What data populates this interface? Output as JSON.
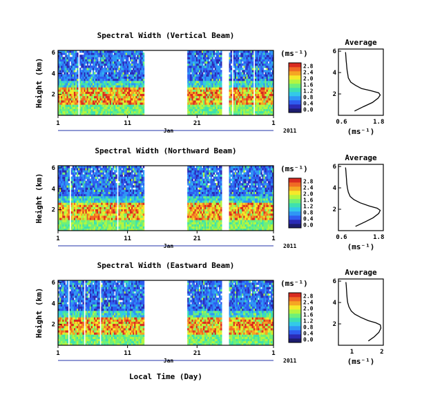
{
  "chart_data": {
    "type": "heatmap",
    "x_tick_labels": [
      "1",
      "11",
      "21",
      "1"
    ],
    "month_label": "Jan",
    "year_label": "2011",
    "xlabel": "Local Time (Day)",
    "ylabel": "Height (km)",
    "y_tick_labels": [
      "2",
      "4",
      "6"
    ],
    "data_gap_days": [
      13.3,
      19.5
    ],
    "secondary_gap_days": [
      24.5,
      25.5
    ],
    "colorbar": {
      "unit": "(ms⁻¹)",
      "ticks": [
        "0.0",
        "0.4",
        "0.8",
        "1.2",
        "1.6",
        "2.0",
        "2.4",
        "2.8"
      ],
      "colors": [
        "#1d1d6e",
        "#2b2bb5",
        "#2f5df0",
        "#2f96f5",
        "#33c9e8",
        "#3ee0b0",
        "#6ef07a",
        "#b5f540",
        "#f5e92a",
        "#f5a623",
        "#f06a25",
        "#d92b20"
      ]
    },
    "panels": [
      {
        "title": "Spectral Width (Vertical Beam)",
        "avg_title": "Average",
        "avg_xlabel": "(ms⁻¹)",
        "avg_x_ticks": [
          "0.6",
          "1.8"
        ],
        "avg_y_ticks": [
          "2",
          "4",
          "6"
        ],
        "avg_profile": [
          [
            1.02,
            0.4
          ],
          [
            1.3,
            0.8
          ],
          [
            1.6,
            1.2
          ],
          [
            1.78,
            1.6
          ],
          [
            1.85,
            1.9
          ],
          [
            1.8,
            2.1
          ],
          [
            1.55,
            2.3
          ],
          [
            1.25,
            2.5
          ],
          [
            1.05,
            2.8
          ],
          [
            0.9,
            3.1
          ],
          [
            0.82,
            3.5
          ],
          [
            0.8,
            3.9
          ],
          [
            0.78,
            4.2
          ],
          [
            0.77,
            4.5
          ],
          [
            0.76,
            4.8
          ],
          [
            0.75,
            5.1
          ],
          [
            0.74,
            5.5
          ],
          [
            0.73,
            5.9
          ]
        ]
      },
      {
        "title": "Spectral Width (Northward Beam)",
        "avg_title": "Average",
        "avg_xlabel": "(ms⁻¹)",
        "avg_x_ticks": [
          "0.6",
          "1.8"
        ],
        "avg_y_ticks": [
          "2",
          "4",
          "6"
        ],
        "avg_profile": [
          [
            1.05,
            0.4
          ],
          [
            1.35,
            0.8
          ],
          [
            1.62,
            1.2
          ],
          [
            1.8,
            1.6
          ],
          [
            1.85,
            1.9
          ],
          [
            1.75,
            2.1
          ],
          [
            1.5,
            2.3
          ],
          [
            1.2,
            2.6
          ],
          [
            1.0,
            2.9
          ],
          [
            0.88,
            3.2
          ],
          [
            0.82,
            3.6
          ],
          [
            0.79,
            4.0
          ],
          [
            0.77,
            4.4
          ],
          [
            0.76,
            4.8
          ],
          [
            0.75,
            5.2
          ],
          [
            0.74,
            5.6
          ],
          [
            0.73,
            5.9
          ]
        ]
      },
      {
        "title": "Spectral Width (Eastward Beam)",
        "avg_title": "Average",
        "avg_xlabel": "(ms⁻¹)",
        "avg_x_ticks": [
          "1",
          "2"
        ],
        "avg_y_ticks": [
          "2",
          "4",
          "6"
        ],
        "avg_profile": [
          [
            1.55,
            0.4
          ],
          [
            1.75,
            0.8
          ],
          [
            1.9,
            1.2
          ],
          [
            1.97,
            1.6
          ],
          [
            1.95,
            1.9
          ],
          [
            1.8,
            2.1
          ],
          [
            1.55,
            2.3
          ],
          [
            1.3,
            2.6
          ],
          [
            1.1,
            2.9
          ],
          [
            0.98,
            3.2
          ],
          [
            0.9,
            3.6
          ],
          [
            0.86,
            4.0
          ],
          [
            0.84,
            4.4
          ],
          [
            0.83,
            4.8
          ],
          [
            0.82,
            5.2
          ],
          [
            0.81,
            5.6
          ],
          [
            0.8,
            5.9
          ]
        ]
      }
    ]
  }
}
